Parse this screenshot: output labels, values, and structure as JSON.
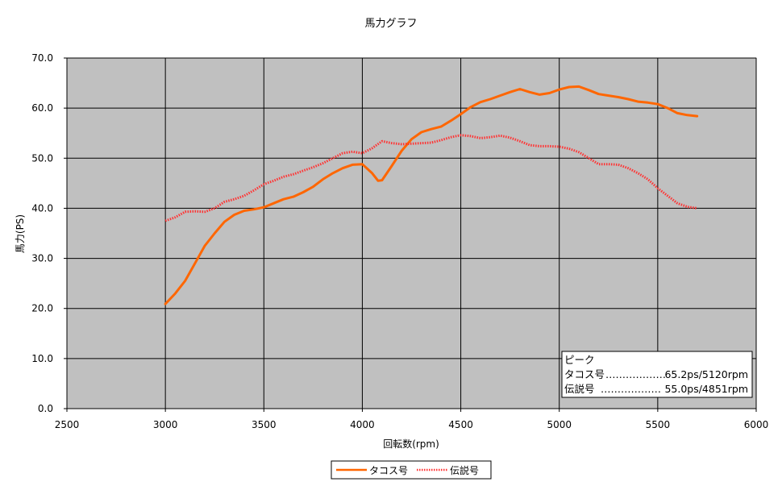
{
  "chart_data": {
    "type": "line",
    "title": "馬力グラフ",
    "xlabel": "回転数(rpm)",
    "ylabel": "馬力(PS)",
    "xlim": [
      2500,
      6000
    ],
    "ylim": [
      0,
      70
    ],
    "x_ticks": [
      "2500",
      "3000",
      "3500",
      "4000",
      "4500",
      "5000",
      "5500",
      "6000"
    ],
    "y_ticks": [
      "0.0",
      "10.0",
      "20.0",
      "30.0",
      "40.0",
      "50.0",
      "60.0",
      "70.0"
    ],
    "grid": true,
    "legend_position": "bottom",
    "plot_background": "#c0c0c0",
    "series": [
      {
        "name": "タコス号",
        "color": "#ff6600",
        "style": "solid",
        "x": [
          3000,
          3050,
          3100,
          3150,
          3200,
          3250,
          3300,
          3350,
          3400,
          3450,
          3500,
          3550,
          3600,
          3650,
          3700,
          3750,
          3800,
          3850,
          3900,
          3950,
          4000,
          4050,
          4080,
          4100,
          4150,
          4200,
          4250,
          4300,
          4350,
          4400,
          4450,
          4500,
          4550,
          4600,
          4650,
          4700,
          4750,
          4800,
          4850,
          4900,
          4950,
          5000,
          5050,
          5100,
          5150,
          5200,
          5250,
          5300,
          5350,
          5400,
          5450,
          5500,
          5550,
          5600,
          5650,
          5700
        ],
        "values": [
          20.9,
          23.0,
          25.5,
          29.0,
          32.5,
          35.0,
          37.3,
          38.7,
          39.5,
          39.8,
          40.2,
          41.0,
          41.8,
          42.3,
          43.2,
          44.3,
          45.8,
          47.0,
          48.0,
          48.7,
          48.8,
          47.0,
          45.5,
          45.6,
          48.5,
          51.5,
          53.8,
          55.2,
          55.8,
          56.3,
          57.5,
          58.8,
          60.2,
          61.2,
          61.8,
          62.5,
          63.2,
          63.8,
          63.2,
          62.7,
          63.0,
          63.7,
          64.2,
          64.3,
          63.6,
          62.8,
          62.5,
          62.2,
          61.8,
          61.3,
          61.1,
          60.8,
          60.0,
          59.0,
          58.6,
          58.4
        ]
      },
      {
        "name": "伝説号",
        "color": "#ff3333",
        "style": "dotted",
        "x": [
          3000,
          3050,
          3100,
          3150,
          3200,
          3250,
          3300,
          3350,
          3400,
          3450,
          3500,
          3550,
          3600,
          3650,
          3700,
          3750,
          3800,
          3850,
          3900,
          3950,
          4000,
          4050,
          4100,
          4150,
          4200,
          4250,
          4300,
          4350,
          4400,
          4450,
          4500,
          4550,
          4600,
          4650,
          4700,
          4750,
          4800,
          4850,
          4900,
          4950,
          5000,
          5050,
          5100,
          5150,
          5200,
          5250,
          5300,
          5350,
          5400,
          5450,
          5500,
          5550,
          5600,
          5650,
          5700
        ],
        "values": [
          37.5,
          38.2,
          39.3,
          39.4,
          39.3,
          40.0,
          41.3,
          41.8,
          42.5,
          43.6,
          44.8,
          45.5,
          46.3,
          46.8,
          47.5,
          48.2,
          49.0,
          50.0,
          51.0,
          51.3,
          51.0,
          52.0,
          53.4,
          53.0,
          52.8,
          52.9,
          53.0,
          53.1,
          53.6,
          54.2,
          54.6,
          54.4,
          54.0,
          54.2,
          54.5,
          54.1,
          53.4,
          52.6,
          52.4,
          52.4,
          52.3,
          51.9,
          51.2,
          50.0,
          48.8,
          48.8,
          48.7,
          48.0,
          47.0,
          45.8,
          44.0,
          42.5,
          41.0,
          40.3,
          40.0
        ]
      }
    ]
  },
  "annotation": {
    "title": "ピーク",
    "rows": [
      {
        "name": "タコス号",
        "dots": "………………",
        "value": "65.2ps/5120rpm"
      },
      {
        "name": "伝説号",
        "dots": "………………",
        "value": "55.0ps/4851rpm"
      }
    ]
  }
}
